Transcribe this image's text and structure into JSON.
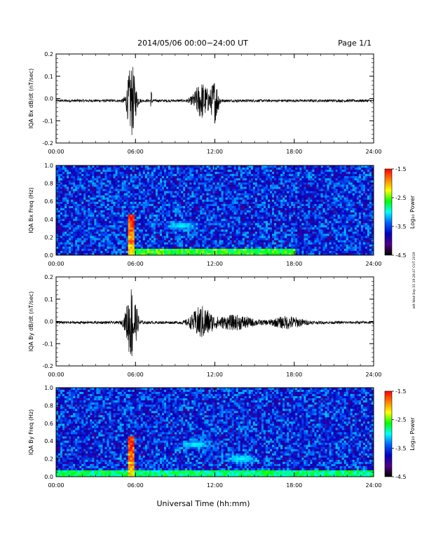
{
  "header": {
    "title": "2014/05/06  00:00−24:00 UT",
    "page_label": "Page 1/1"
  },
  "footer": {
    "xlabel": "Universal Time (hh:mm)",
    "side_stamp": "wtt Wed Sep 10 19:26:47 CUT 2019"
  },
  "colorbar": {
    "label": "Log₁₀ Power",
    "ticks": [
      "-1.5",
      "-2.5",
      "-3.5",
      "-4.5"
    ],
    "colors": [
      "#ff0000",
      "#ff8000",
      "#ffff00",
      "#00ff00",
      "#00ffff",
      "#0060ff",
      "#0000c0",
      "#500080",
      "#000000"
    ]
  },
  "chart_data": [
    {
      "type": "line",
      "title": "",
      "ylabel": "IQA Bx dB/dt (nT/sec)",
      "xlabel": "",
      "xlim": [
        "00:00",
        "24:00"
      ],
      "x_ticks": [
        "00:00",
        "06:00",
        "12:00",
        "18:00",
        "24:00"
      ],
      "ylim": [
        -0.2,
        0.2
      ],
      "y_ticks": [
        "0.2",
        "0.1",
        "0.0",
        "-0.1",
        "-0.2"
      ],
      "grid": false,
      "baseline": -0.01,
      "noise_amplitude": 0.006,
      "bursts": [
        {
          "time_h": 5.7,
          "width_h": 0.35,
          "amplitude": 0.16
        },
        {
          "time_h": 11.0,
          "width_h": 0.6,
          "amplitude": 0.08
        },
        {
          "time_h": 12.0,
          "width_h": 0.3,
          "amplitude": 0.09
        },
        {
          "time_h": 7.2,
          "width_h": 0.05,
          "amplitude": 0.05
        }
      ]
    },
    {
      "type": "heatmap",
      "title": "",
      "ylabel": "IQA Bx Freq (Hz)",
      "xlabel": "",
      "xlim": [
        "00:00",
        "24:00"
      ],
      "x_ticks": [
        "00:00",
        "06:00",
        "12:00",
        "18:00",
        "24:00"
      ],
      "ylim": [
        0.0,
        1.0
      ],
      "y_ticks": [
        "1.0",
        "0.8",
        "0.6",
        "0.4",
        "0.2",
        "0.0"
      ],
      "zlabel": "Log₁₀ Power",
      "zlim": [
        -4.5,
        -1.5
      ],
      "background_power": -3.6,
      "features": [
        {
          "time_h": 5.7,
          "width_h": 0.2,
          "freq_max": 0.45,
          "power": -2.2
        },
        {
          "time_h": 7.2,
          "width_h": 0.04,
          "freq_max": 1.0,
          "power": -3.0
        },
        {
          "time_h": 9.5,
          "width_h": 1.2,
          "freq_center": 0.33,
          "power": -3.0
        },
        {
          "low_band_freq_max": 0.06,
          "time_range_h": [
            5.5,
            18.0
          ],
          "power": -2.6
        }
      ]
    },
    {
      "type": "line",
      "title": "",
      "ylabel": "IQA By dB/dt (nT/sec)",
      "xlabel": "",
      "xlim": [
        "00:00",
        "24:00"
      ],
      "x_ticks": [
        "00:00",
        "06:00",
        "12:00",
        "18:00",
        "24:00"
      ],
      "ylim": [
        -0.2,
        0.2
      ],
      "y_ticks": [
        "0.2",
        "0.1",
        "0.0",
        "-0.1",
        "-0.2"
      ],
      "grid": false,
      "baseline": -0.005,
      "noise_amplitude": 0.006,
      "bursts": [
        {
          "time_h": 5.7,
          "width_h": 0.4,
          "amplitude": 0.17
        },
        {
          "time_h": 11.0,
          "width_h": 0.8,
          "amplitude": 0.07
        },
        {
          "time_h": 13.5,
          "width_h": 1.5,
          "amplitude": 0.03
        },
        {
          "time_h": 17.5,
          "width_h": 1.2,
          "amplitude": 0.025
        }
      ]
    },
    {
      "type": "heatmap",
      "title": "",
      "ylabel": "IQA By Freq (Hz)",
      "xlabel": "Universal Time (hh:mm)",
      "xlim": [
        "00:00",
        "24:00"
      ],
      "x_ticks": [
        "00:00",
        "06:00",
        "12:00",
        "18:00",
        "24:00"
      ],
      "ylim": [
        0.0,
        1.0
      ],
      "y_ticks": [
        "1.0",
        "0.8",
        "0.6",
        "0.4",
        "0.2",
        "0.0"
      ],
      "zlabel": "Log₁₀ Power",
      "zlim": [
        -4.5,
        -1.5
      ],
      "background_power": -3.6,
      "features": [
        {
          "time_h": 5.7,
          "width_h": 0.2,
          "freq_max": 0.45,
          "power": -2.2
        },
        {
          "time_h": 7.2,
          "width_h": 0.04,
          "freq_max": 1.0,
          "power": -3.0
        },
        {
          "time_h": 10.5,
          "width_h": 1.0,
          "freq_center": 0.36,
          "power": -3.0
        },
        {
          "time_h": 14.0,
          "width_h": 1.2,
          "freq_center": 0.2,
          "power": -3.0
        },
        {
          "low_band_freq_max": 0.08,
          "time_range_h": [
            0.0,
            24.0
          ],
          "power": -2.8
        }
      ]
    }
  ]
}
